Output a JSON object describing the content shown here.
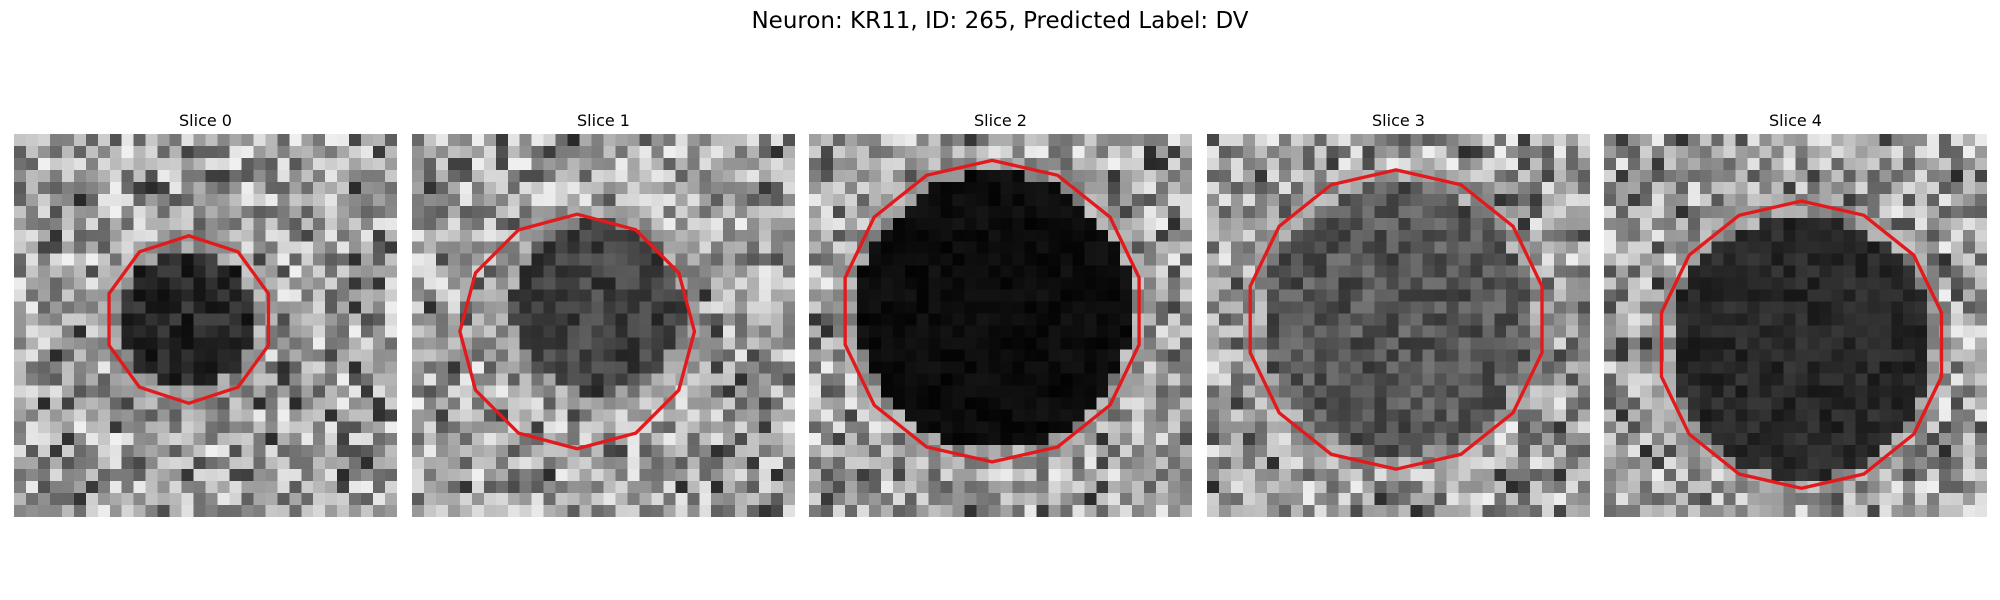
{
  "figure": {
    "title": "Neuron: KR11, ID: 265, Predicted Label: DV"
  },
  "panels": [
    {
      "title": "Slice 0",
      "cell": "small-dark-roughly-octagonal-cell-left-of-center",
      "outline_color": "#e31a1c"
    },
    {
      "title": "Slice 1",
      "cell": "medium-dark-cell-with-bright-ring-outline-larger-than-cell",
      "outline_color": "#e31a1c"
    },
    {
      "title": "Slice 2",
      "cell": "large-very-dark-circular-cell",
      "outline_color": "#e31a1c"
    },
    {
      "title": "Slice 3",
      "cell": "large-mottled-gray-circular-cell",
      "outline_color": "#e31a1c"
    },
    {
      "title": "Slice 4",
      "cell": "large-dark-circular-cell-lower-center",
      "outline_color": "#e31a1c"
    }
  ],
  "colors": {
    "background": "#ffffff",
    "outline": "#e31a1c"
  }
}
